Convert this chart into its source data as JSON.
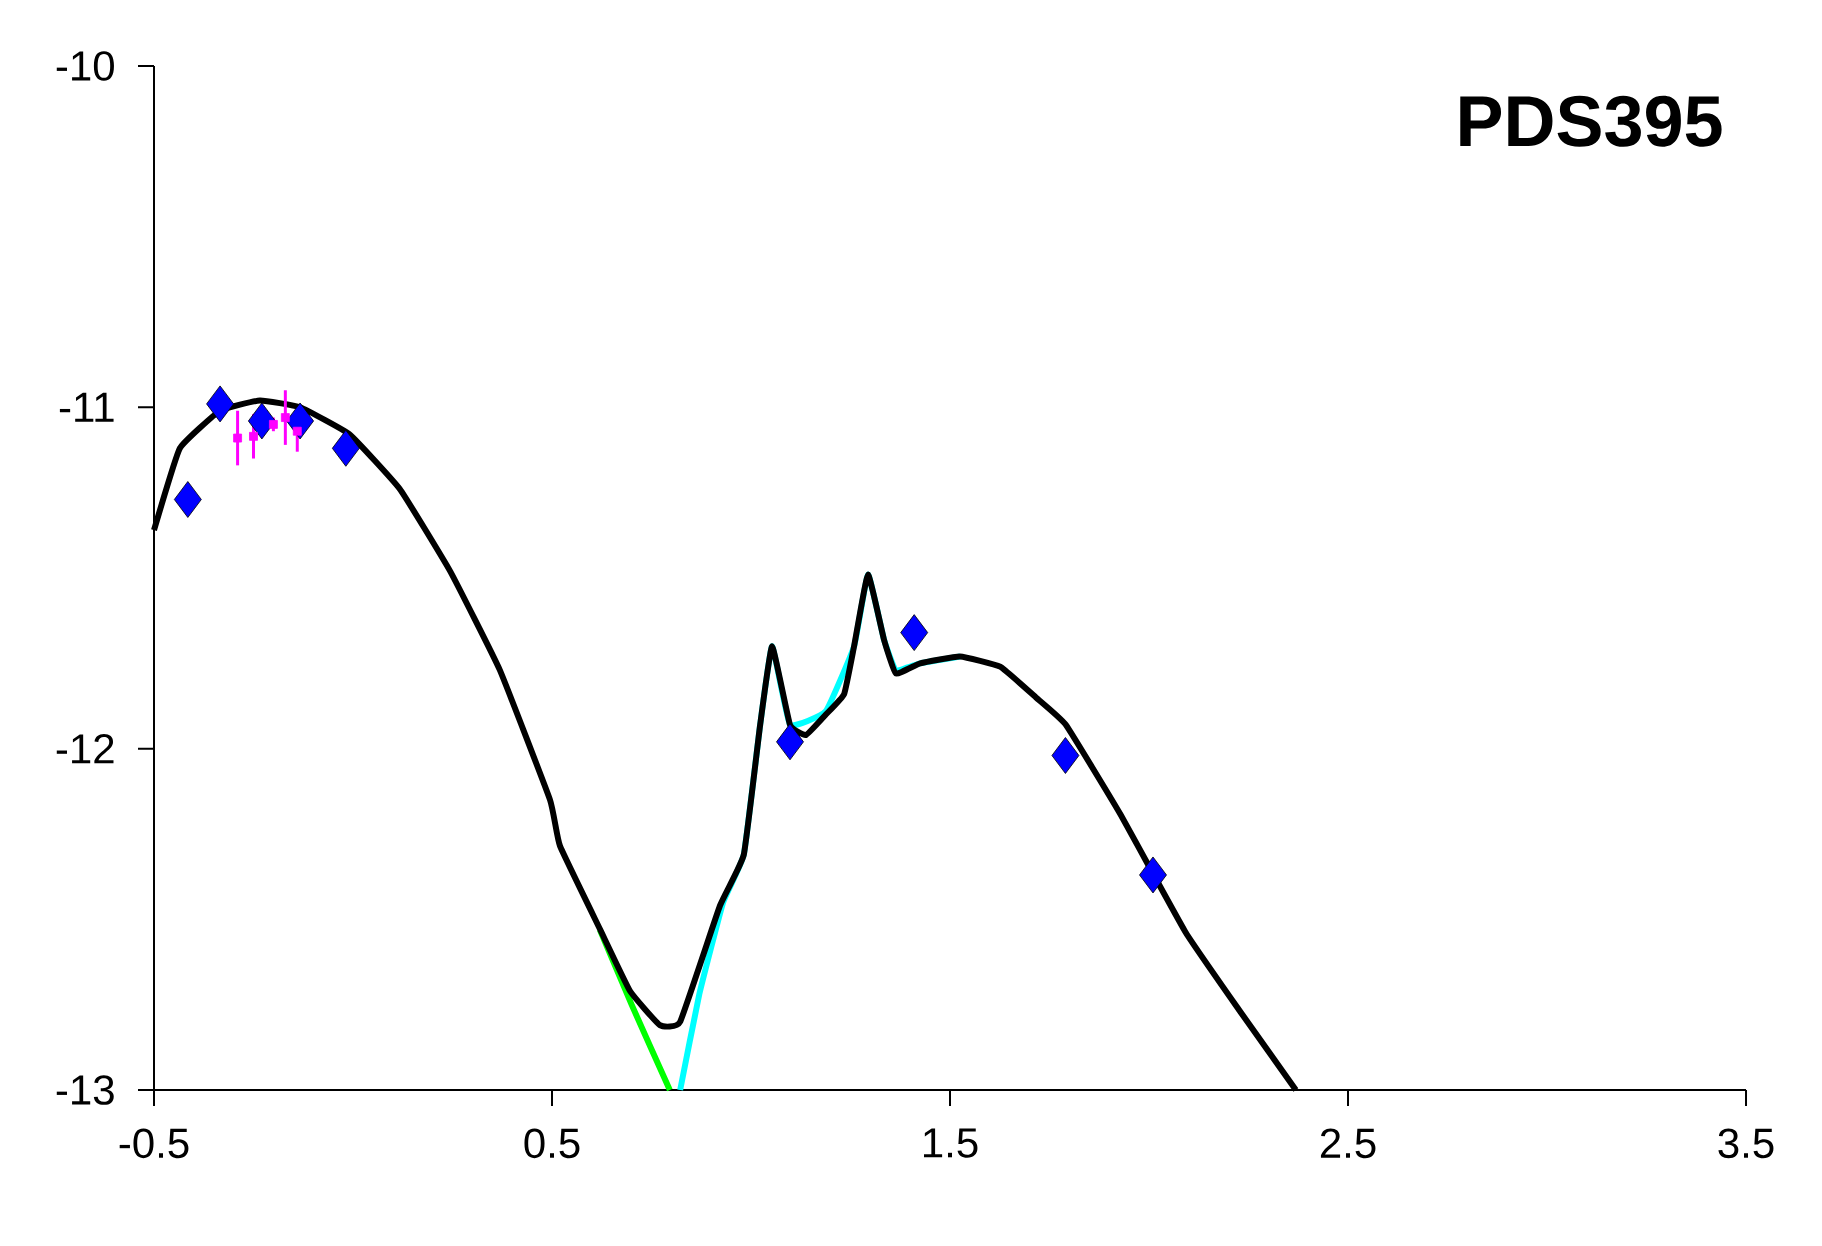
{
  "chart_data": {
    "type": "line",
    "title": "PDS395",
    "xlim": [
      -0.5,
      3.5
    ],
    "ylim": [
      -13,
      -10
    ],
    "xticks": [
      -0.5,
      0.5,
      1.5,
      2.5,
      3.5
    ],
    "yticks": [
      -10,
      -11,
      -12,
      -13
    ],
    "grid": false,
    "series": [
      {
        "color": "#00ff00",
        "marker": "none",
        "x": [
          0.62,
          0.7,
          0.796
        ],
        "values": [
          -12.53,
          -12.75,
          -13.0
        ]
      },
      {
        "color": "#00ffff",
        "marker": "none",
        "x": [
          0.822,
          0.87,
          0.93,
          0.982,
          1.023,
          1.053,
          1.098,
          1.188,
          1.259,
          1.294,
          1.334,
          1.364,
          1.425,
          1.525
        ],
        "values": [
          -13.0,
          -12.72,
          -12.45,
          -12.31,
          -11.93,
          -11.7,
          -11.93,
          -11.89,
          -11.7,
          -11.49,
          -11.68,
          -11.77,
          -11.75,
          -11.73
        ]
      },
      {
        "color": "#000000",
        "marker": "none",
        "x": [
          -0.5,
          -0.435,
          -0.334,
          -0.234,
          -0.133,
          -0.008,
          0.118,
          0.244,
          0.369,
          0.495,
          0.52,
          0.621,
          0.696,
          0.771,
          0.822,
          0.922,
          0.982,
          1.023,
          1.053,
          1.098,
          1.138,
          1.188,
          1.234,
          1.259,
          1.294,
          1.334,
          1.364,
          1.425,
          1.525,
          1.626,
          1.716,
          1.791,
          1.927,
          2.093,
          2.229,
          2.369
        ],
        "values": [
          -11.36,
          -11.12,
          -11.01,
          -10.98,
          -11.0,
          -11.08,
          -11.24,
          -11.48,
          -11.77,
          -12.15,
          -12.285,
          -12.53,
          -12.71,
          -12.81,
          -12.8,
          -12.46,
          -12.31,
          -11.93,
          -11.7,
          -11.93,
          -11.96,
          -11.9,
          -11.84,
          -11.7,
          -11.49,
          -11.68,
          -11.78,
          -11.75,
          -11.73,
          -11.76,
          -11.85,
          -11.93,
          -12.19,
          -12.54,
          -12.77,
          -13.0
        ]
      },
      {
        "type": "scatter",
        "color": "#0000ff",
        "marker": "diamond",
        "x": [
          -0.415,
          -0.334,
          -0.229,
          -0.133,
          -0.018,
          1.098,
          1.41,
          1.79,
          2.01
        ],
        "values": [
          -11.27,
          -10.99,
          -11.04,
          -11.04,
          -11.12,
          -11.98,
          -11.66,
          -12.02,
          -12.37
        ]
      },
      {
        "type": "scatter",
        "color": "#ff00ff",
        "marker": "square",
        "x": [
          -0.29,
          -0.25,
          -0.2,
          -0.17,
          -0.14
        ],
        "values": [
          -11.09,
          -11.085,
          -11.05,
          -11.03,
          -11.07
        ],
        "errors": [
          [
            -11.17,
            -11.01
          ],
          [
            -11.15,
            -11.02
          ],
          [
            -11.07,
            -11.03
          ],
          [
            -11.11,
            -10.95
          ],
          [
            -11.13,
            -11.01
          ]
        ]
      }
    ]
  }
}
